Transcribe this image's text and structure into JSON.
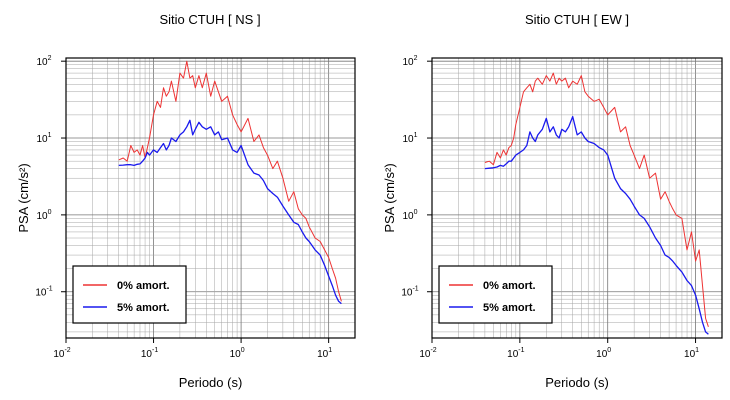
{
  "chart_data": [
    {
      "type": "line",
      "title": "Sitio CTUH [ NS ]",
      "xlabel": "Periodo (s)",
      "ylabel": "PSA (cm/s²)",
      "xscale": "log",
      "yscale": "log",
      "xlim": [
        0.01,
        20
      ],
      "ylim": [
        0.025,
        110
      ],
      "grid": true,
      "legend_position": "bottom-left",
      "x_ticks": [
        {
          "base": "10",
          "exp": "-2"
        },
        {
          "base": "10",
          "exp": "-1"
        },
        {
          "base": "10",
          "exp": "0"
        },
        {
          "base": "10",
          "exp": "1"
        }
      ],
      "y_ticks": [
        {
          "base": "10",
          "exp": "-1"
        },
        {
          "base": "10",
          "exp": "0"
        },
        {
          "base": "10",
          "exp": "1"
        },
        {
          "base": "10",
          "exp": "2"
        }
      ],
      "series": [
        {
          "name": "0% amort.",
          "color": "#ee3333",
          "x": [
            0.04,
            0.045,
            0.05,
            0.055,
            0.06,
            0.065,
            0.07,
            0.075,
            0.08,
            0.085,
            0.09,
            0.1,
            0.11,
            0.12,
            0.13,
            0.14,
            0.15,
            0.16,
            0.18,
            0.2,
            0.22,
            0.24,
            0.26,
            0.28,
            0.3,
            0.33,
            0.36,
            0.4,
            0.45,
            0.5,
            0.55,
            0.6,
            0.7,
            0.8,
            0.9,
            1.0,
            1.2,
            1.4,
            1.6,
            1.8,
            2.0,
            2.3,
            2.6,
            3.0,
            3.5,
            4.0,
            4.5,
            5.0,
            5.5,
            6.0,
            7.0,
            8.0,
            9.0,
            10,
            11,
            12,
            13,
            14
          ],
          "y": [
            5.2,
            5.5,
            5.0,
            8.0,
            6.5,
            7.0,
            6.0,
            8.0,
            5.5,
            7.5,
            10,
            20,
            30,
            25,
            45,
            35,
            40,
            55,
            30,
            70,
            60,
            100,
            60,
            65,
            45,
            65,
            45,
            70,
            35,
            55,
            40,
            30,
            35,
            20,
            15,
            12,
            18,
            9,
            11,
            7.5,
            6,
            4.0,
            5.0,
            3.0,
            1.5,
            2.0,
            1.2,
            1.0,
            0.9,
            0.7,
            0.5,
            0.45,
            0.35,
            0.28,
            0.2,
            0.15,
            0.1,
            0.075
          ]
        },
        {
          "name": "5% amort.",
          "color": "#1a1aee",
          "x": [
            0.04,
            0.045,
            0.05,
            0.055,
            0.06,
            0.065,
            0.07,
            0.075,
            0.08,
            0.085,
            0.09,
            0.1,
            0.11,
            0.12,
            0.13,
            0.14,
            0.15,
            0.16,
            0.18,
            0.2,
            0.22,
            0.24,
            0.26,
            0.28,
            0.3,
            0.33,
            0.36,
            0.4,
            0.45,
            0.5,
            0.55,
            0.6,
            0.7,
            0.8,
            0.9,
            1.0,
            1.2,
            1.4,
            1.6,
            1.8,
            2.0,
            2.3,
            2.6,
            3.0,
            3.5,
            4.0,
            4.5,
            5.0,
            5.5,
            6.0,
            7.0,
            8.0,
            9.0,
            10,
            11,
            12,
            13,
            14
          ],
          "y": [
            4.4,
            4.45,
            4.5,
            4.5,
            4.4,
            4.55,
            4.6,
            5.0,
            5.5,
            6.5,
            6.0,
            7.0,
            6.5,
            7.5,
            8.5,
            7.0,
            8.0,
            10,
            9.0,
            11,
            12,
            14,
            17,
            11,
            13,
            16,
            14,
            13,
            14,
            11,
            12,
            9.5,
            10,
            7.0,
            6.5,
            8.0,
            4.5,
            3.5,
            3.3,
            2.8,
            2.2,
            1.9,
            1.7,
            1.3,
            1.0,
            0.8,
            0.75,
            0.6,
            0.5,
            0.45,
            0.35,
            0.3,
            0.22,
            0.16,
            0.12,
            0.09,
            0.075,
            0.07
          ]
        }
      ]
    },
    {
      "type": "line",
      "title": "Sitio CTUH [ EW ]",
      "xlabel": "Periodo (s)",
      "ylabel": "PSA (cm/s²)",
      "xscale": "log",
      "yscale": "log",
      "xlim": [
        0.01,
        20
      ],
      "ylim": [
        0.025,
        110
      ],
      "grid": true,
      "legend_position": "bottom-left",
      "x_ticks": [
        {
          "base": "10",
          "exp": "-2"
        },
        {
          "base": "10",
          "exp": "-1"
        },
        {
          "base": "10",
          "exp": "0"
        },
        {
          "base": "10",
          "exp": "1"
        }
      ],
      "y_ticks": [
        {
          "base": "10",
          "exp": "-1"
        },
        {
          "base": "10",
          "exp": "0"
        },
        {
          "base": "10",
          "exp": "1"
        },
        {
          "base": "10",
          "exp": "2"
        }
      ],
      "series": [
        {
          "name": "0% amort.",
          "color": "#ee3333",
          "x": [
            0.04,
            0.045,
            0.05,
            0.055,
            0.06,
            0.065,
            0.07,
            0.075,
            0.08,
            0.085,
            0.09,
            0.1,
            0.11,
            0.12,
            0.13,
            0.14,
            0.15,
            0.16,
            0.18,
            0.2,
            0.22,
            0.24,
            0.26,
            0.28,
            0.3,
            0.33,
            0.36,
            0.4,
            0.45,
            0.5,
            0.55,
            0.6,
            0.7,
            0.8,
            0.9,
            1.0,
            1.2,
            1.4,
            1.6,
            1.8,
            2.0,
            2.3,
            2.6,
            3.0,
            3.5,
            4.0,
            4.5,
            5.0,
            5.5,
            6.0,
            7.0,
            8.0,
            9.0,
            10,
            11,
            12,
            13,
            14
          ],
          "y": [
            4.8,
            5.0,
            4.5,
            6.5,
            5.5,
            7.0,
            6.0,
            7.5,
            8.0,
            10,
            15,
            25,
            40,
            45,
            50,
            40,
            55,
            60,
            50,
            65,
            55,
            70,
            50,
            60,
            55,
            60,
            45,
            55,
            50,
            65,
            40,
            35,
            30,
            32,
            25,
            20,
            25,
            12,
            14,
            8.0,
            6.0,
            4.0,
            6.0,
            3.0,
            3.5,
            1.6,
            2.0,
            1.5,
            1.2,
            1.0,
            0.9,
            0.35,
            0.6,
            0.25,
            0.35,
            0.12,
            0.045,
            0.035
          ]
        },
        {
          "name": "5% amort.",
          "color": "#1a1aee",
          "x": [
            0.04,
            0.045,
            0.05,
            0.055,
            0.06,
            0.065,
            0.07,
            0.075,
            0.08,
            0.085,
            0.09,
            0.1,
            0.11,
            0.12,
            0.13,
            0.14,
            0.15,
            0.16,
            0.18,
            0.2,
            0.22,
            0.24,
            0.26,
            0.28,
            0.3,
            0.33,
            0.36,
            0.4,
            0.45,
            0.5,
            0.55,
            0.6,
            0.7,
            0.8,
            0.9,
            1.0,
            1.2,
            1.4,
            1.6,
            1.8,
            2.0,
            2.3,
            2.6,
            3.0,
            3.5,
            4.0,
            4.5,
            5.0,
            5.5,
            6.0,
            7.0,
            8.0,
            9.0,
            10,
            11,
            12,
            13,
            14
          ],
          "y": [
            4.0,
            4.05,
            4.1,
            4.2,
            4.4,
            4.3,
            4.6,
            5.0,
            5.0,
            5.5,
            6.0,
            6.5,
            7.0,
            8.0,
            12,
            10,
            9.0,
            11,
            13,
            18,
            12,
            14,
            11,
            10,
            13,
            12,
            14,
            19,
            11,
            12,
            10,
            9.0,
            8.5,
            7.5,
            7.0,
            6.0,
            3.0,
            2.2,
            1.9,
            1.6,
            1.3,
            1.0,
            0.9,
            0.7,
            0.5,
            0.4,
            0.3,
            0.28,
            0.25,
            0.22,
            0.18,
            0.14,
            0.12,
            0.09,
            0.06,
            0.04,
            0.03,
            0.028
          ]
        }
      ]
    }
  ]
}
